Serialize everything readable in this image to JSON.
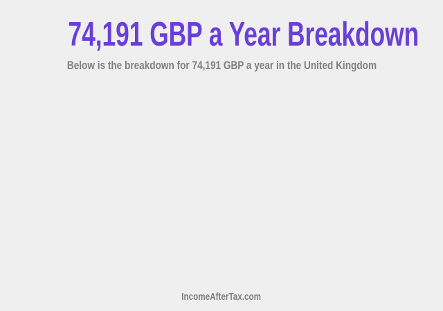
{
  "header": {
    "title": "74,191 GBP a Year Breakdown",
    "subtitle": "Below is the breakdown for 74,191 GBP a year in the United Kingdom"
  },
  "footer": {
    "site_link": "IncomeAfterTax.com"
  },
  "colors": {
    "accent": "#6a3fd8",
    "text_muted": "#808080",
    "background": "#efefef"
  }
}
